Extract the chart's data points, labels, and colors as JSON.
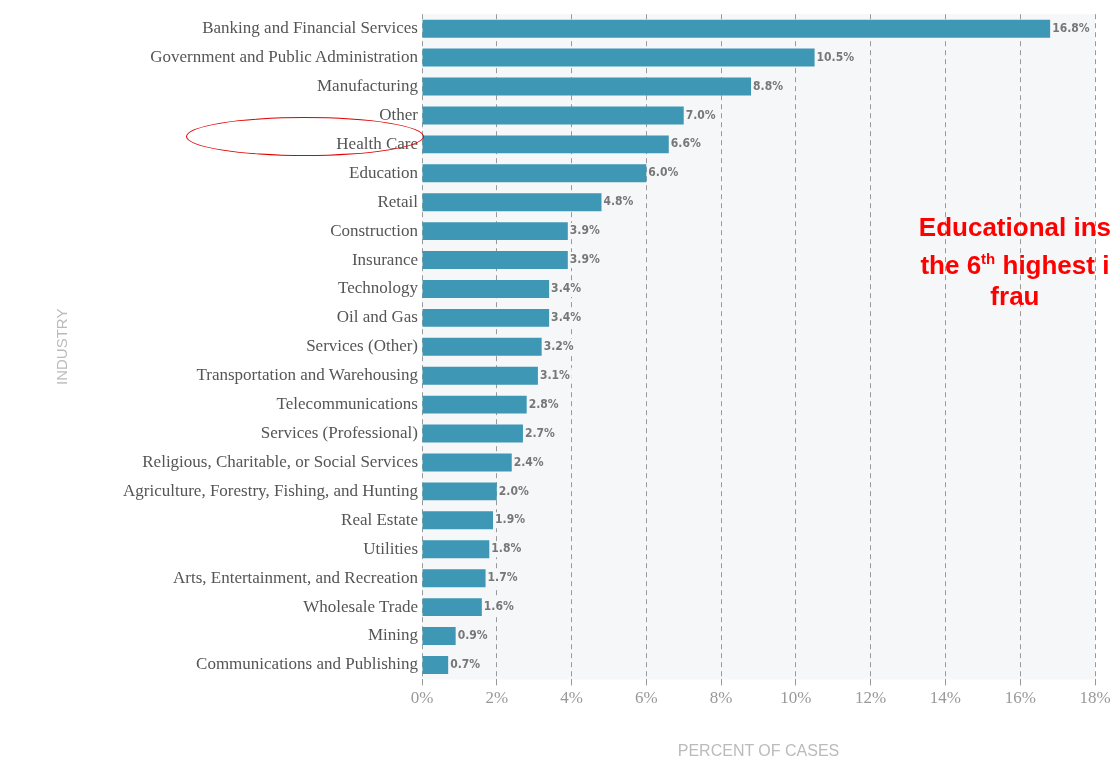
{
  "chart_data": {
    "type": "bar",
    "orientation": "horizontal",
    "xlabel": "PERCENT OF CASES",
    "ylabel": "INDUSTRY",
    "categories": [
      "Banking and Financial Services",
      "Government and Public Administration",
      "Manufacturing",
      "Other",
      "Health Care",
      "Education",
      "Retail",
      "Construction",
      "Insurance",
      "Technology",
      "Oil and Gas",
      "Services (Other)",
      "Transportation and Warehousing",
      "Telecommunications",
      "Services (Professional)",
      "Religious, Charitable, or Social Services",
      "Agriculture, Forestry, Fishing, and Hunting",
      "Real Estate",
      "Utilities",
      "Arts, Entertainment, and Recreation",
      "Wholesale Trade",
      "Mining",
      "Communications and Publishing"
    ],
    "values": [
      16.8,
      10.5,
      8.8,
      7.0,
      6.6,
      6.0,
      4.8,
      3.9,
      3.9,
      3.4,
      3.4,
      3.2,
      3.1,
      2.8,
      2.7,
      2.4,
      2.0,
      1.9,
      1.8,
      1.7,
      1.6,
      0.9,
      0.7
    ],
    "value_labels": [
      "16.8%",
      "10.5%",
      "8.8%",
      "7.0%",
      "6.6%",
      "6.0%",
      "4.8%",
      "3.9%",
      "3.9%",
      "3.4%",
      "3.4%",
      "3.2%",
      "3.1%",
      "2.8%",
      "2.7%",
      "2.4%",
      "2.0%",
      "1.9%",
      "1.8%",
      "1.7%",
      "1.6%",
      "0.9%",
      "0.7%"
    ],
    "color": "#3e97b4",
    "xlim": [
      0,
      18
    ],
    "xticks": [
      {
        "value": 0,
        "label": "0%"
      },
      {
        "value": 2,
        "label": "2%"
      },
      {
        "value": 4,
        "label": "4%"
      },
      {
        "value": 6,
        "label": "6%"
      },
      {
        "value": 8,
        "label": "8%"
      },
      {
        "value": 10,
        "label": "10%"
      },
      {
        "value": 12,
        "label": "12%"
      },
      {
        "value": 14,
        "label": "14%"
      },
      {
        "value": 16,
        "label": "16%"
      },
      {
        "value": 18,
        "label": "18%"
      }
    ],
    "grid": "x",
    "legend": false,
    "annotations": [
      "Educational ins",
      "the 6$^{th}$ highest i",
      "frau"
    ]
  }
}
